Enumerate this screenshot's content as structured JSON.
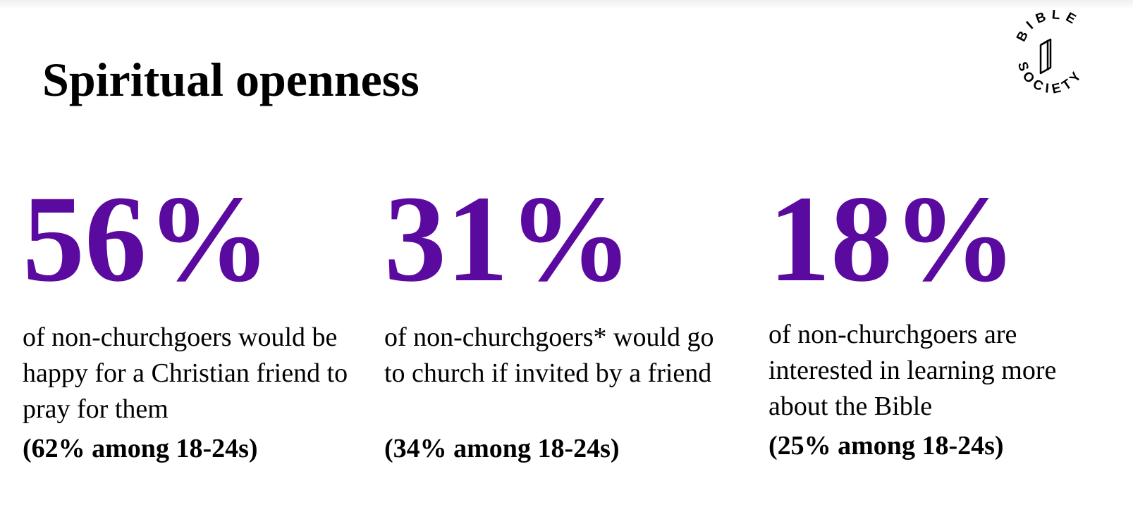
{
  "colors": {
    "accent": "#5b0aa0",
    "text": "#000000",
    "background": "#ffffff"
  },
  "header": {
    "title": "Spiritual openness"
  },
  "logo": {
    "icon": "bible-society-logo-icon",
    "text": "BIBLE SOCIETY"
  },
  "stats": [
    {
      "value": "56%",
      "description": "of non-churchgoers would be happy for a Christian friend to pray for them",
      "subtext": "(62% among 18-24s)"
    },
    {
      "value": "31%",
      "description": "of non-churchgoers* would go to church if invited by a friend",
      "subtext": "(34% among 18-24s)"
    },
    {
      "value": "18%",
      "description": "of non-churchgoers are interested in learning more about the Bible",
      "subtext": "(25% among 18-24s)"
    }
  ]
}
